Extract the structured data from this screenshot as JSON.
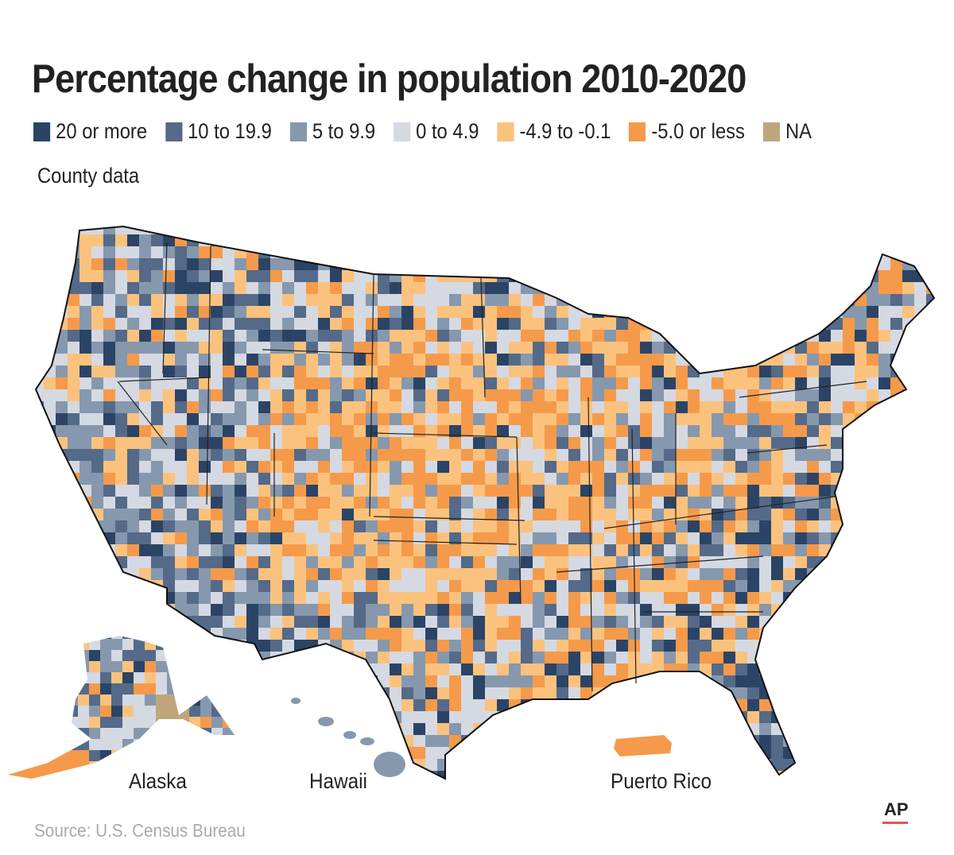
{
  "title": "Percentage change in population 2010-2020",
  "subtitle": "County data",
  "legend": [
    {
      "label": "20 or more",
      "color": "#2b4465"
    },
    {
      "label": "10 to 19.9",
      "color": "#546a88"
    },
    {
      "label": "5 to 9.9",
      "color": "#8698ad"
    },
    {
      "label": "0 to 4.9",
      "color": "#d5d9e2"
    },
    {
      "label": "-4.9 to -0.1",
      "color": "#fbc27e"
    },
    {
      "label": "-5.0 or less",
      "color": "#f59a4a"
    },
    {
      "label": "NA",
      "color": "#bea77a"
    }
  ],
  "labels": {
    "alaska": "Alaska",
    "hawaii": "Hawaii",
    "puerto_rico": "Puerto Rico"
  },
  "source": "Source: U.S. Census Bureau",
  "credit": "AP"
}
